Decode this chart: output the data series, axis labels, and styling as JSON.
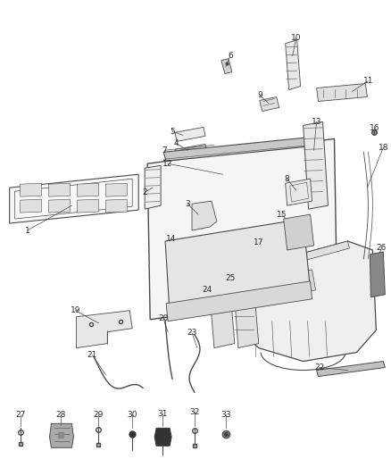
{
  "bg_color": "#ffffff",
  "line_color": "#4a4a4a",
  "text_color": "#2a2a2a",
  "figsize": [
    4.38,
    5.33
  ],
  "dpi": 100,
  "label_fs": 6.5,
  "lw_main": 0.8,
  "lw_thin": 0.5,
  "lw_thick": 1.0
}
